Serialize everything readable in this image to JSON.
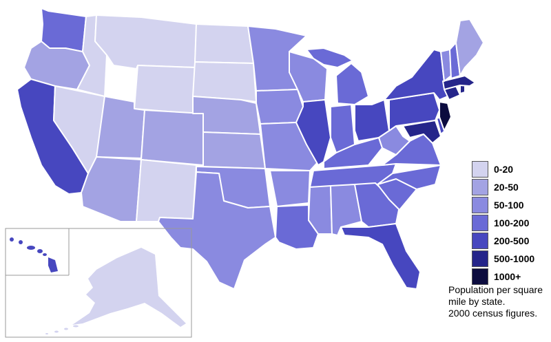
{
  "legend": {
    "items": [
      {
        "label": "0-20",
        "color": "#d3d3ef"
      },
      {
        "label": "20-50",
        "color": "#a3a3e3"
      },
      {
        "label": "50-100",
        "color": "#8a8ae0"
      },
      {
        "label": "100-200",
        "color": "#6a6ad6"
      },
      {
        "label": "200-500",
        "color": "#4747bf"
      },
      {
        "label": "500-1000",
        "color": "#25258a"
      },
      {
        "label": "1000+",
        "color": "#0c0c3f"
      }
    ]
  },
  "caption": {
    "line1": "Population per square",
    "line2": "mile by state.",
    "line3": "2000 census figures."
  },
  "colors": {
    "background": "#ffffff",
    "state_border": "#ffffff",
    "inset_border": "#999999"
  }
}
